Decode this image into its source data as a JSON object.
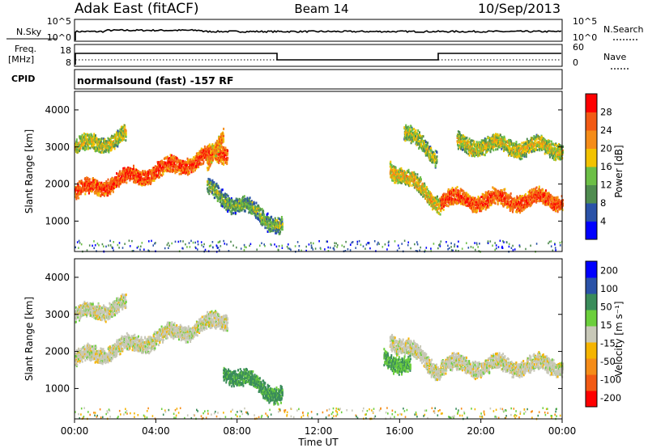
{
  "header": {
    "station": "Adak East (fitACF)",
    "beam": "Beam 14",
    "date": "10/Sep/2013"
  },
  "left_labels": {
    "nsky": "N.Sky",
    "freq_line1": "Freq.",
    "freq_line2": "[MHz]",
    "cpid": "CPID"
  },
  "right_labels": {
    "nsearch": "N.Search",
    "nave": "Nave"
  },
  "nsky_axis": {
    "ticks": [
      "10^5",
      "10^0"
    ]
  },
  "freq_axis": {
    "ticks": [
      "18",
      "8"
    ]
  },
  "nave_axis": {
    "ticks": [
      "60",
      "0"
    ]
  },
  "cpid_text": "normalsound (fast) -157 RF",
  "time_axis": {
    "ticks": [
      "00:00",
      "04:00",
      "08:00",
      "12:00",
      "16:00",
      "20:00",
      "00:00"
    ],
    "label": "Time UT"
  },
  "colors": {
    "power": [
      "#0000ff",
      "#2a52a8",
      "#4f8c4f",
      "#6cbf46",
      "#f2c200",
      "#f58c18",
      "#f25a14",
      "#ff0000"
    ],
    "velocity": [
      "#ff0000",
      "#f25a14",
      "#f58c18",
      "#f5b400",
      "#c8c8b8",
      "#6ccf3c",
      "#3a8c5a",
      "#2a52a8",
      "#0000ff"
    ]
  },
  "chart_data": [
    {
      "type": "heatmap",
      "name": "power-panel",
      "xlabel": "Time UT",
      "ylabel": "Slant Range [km]",
      "xlim": [
        0,
        24
      ],
      "ylim": [
        180,
        4500
      ],
      "yticks": [
        "1000",
        "2000",
        "3000",
        "4000"
      ],
      "colorbar": {
        "label": "Power [dB]",
        "ticks": [
          "4",
          "8",
          "12",
          "16",
          "20",
          "24",
          "28"
        ],
        "range": [
          0,
          32
        ]
      },
      "features": [
        {
          "t_start": 0,
          "t_end": 7.5,
          "range_start": 1800,
          "range_end": 2900,
          "value": 28
        },
        {
          "t_start": 0,
          "t_end": 2.5,
          "range_start": 3000,
          "range_end": 3300,
          "value": 18
        },
        {
          "t_start": 6.5,
          "t_end": 7.3,
          "range_start": 2400,
          "range_end": 3400,
          "value": 24
        },
        {
          "t_start": 6.5,
          "t_end": 10.2,
          "range_start": 1900,
          "range_end": 900,
          "value": 14
        },
        {
          "t_start": 15.5,
          "t_end": 18,
          "range_start": 2500,
          "range_end": 1500,
          "value": 20
        },
        {
          "t_start": 16.2,
          "t_end": 17.8,
          "range_start": 3400,
          "range_end": 2800,
          "value": 16
        },
        {
          "t_start": 18,
          "t_end": 24,
          "range_start": 1600,
          "range_end": 1600,
          "value": 28
        },
        {
          "t_start": 18.8,
          "t_end": 24,
          "range_start": 3100,
          "range_end": 3000,
          "value": 18
        }
      ]
    },
    {
      "type": "heatmap",
      "name": "velocity-panel",
      "xlabel": "Time UT",
      "ylabel": "Slant Range [km]",
      "xlim": [
        0,
        24
      ],
      "ylim": [
        180,
        4500
      ],
      "yticks": [
        "1000",
        "2000",
        "3000",
        "4000"
      ],
      "colorbar": {
        "label": "Velocity [m s⁻¹]",
        "ticks": [
          "200",
          "100",
          "50",
          "15",
          "-15",
          "-50",
          "-100",
          "-200"
        ],
        "range": [
          -250,
          250
        ]
      },
      "features": [
        {
          "t_start": 0,
          "t_end": 7.5,
          "range_start": 1800,
          "range_end": 2900,
          "value": 0
        },
        {
          "t_start": 0,
          "t_end": 2.5,
          "range_start": 3000,
          "range_end": 3300,
          "value": 0
        },
        {
          "t_start": 7.3,
          "t_end": 10.2,
          "range_start": 1500,
          "range_end": 850,
          "value": 60
        },
        {
          "t_start": 15.5,
          "t_end": 18,
          "range_start": 2400,
          "range_end": 1500,
          "value": 0
        },
        {
          "t_start": 15.2,
          "t_end": 16.5,
          "range_start": 1900,
          "range_end": 1600,
          "value": 50
        },
        {
          "t_start": 18,
          "t_end": 24,
          "range_start": 1650,
          "range_end": 1650,
          "value": 0
        }
      ]
    }
  ]
}
